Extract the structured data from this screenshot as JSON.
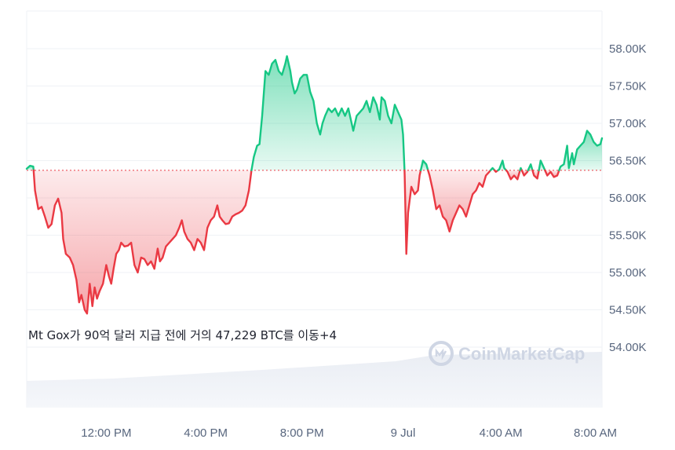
{
  "chart_data": {
    "type": "area",
    "title": "",
    "xlabel": "",
    "ylabel": "",
    "baseline": 56370,
    "ylim": [
      53300,
      58500
    ],
    "y_ticks": [
      54000,
      54500,
      55000,
      55500,
      56000,
      56500,
      57000,
      57500,
      58000
    ],
    "y_tick_labels": [
      "54.00K",
      "54.50K",
      "55.00K",
      "55.50K",
      "56.00K",
      "56.50K",
      "57.00K",
      "57.50K",
      "58.00K"
    ],
    "x_range_hours": [
      -1.4,
      15.95
    ],
    "x_ticks": [
      {
        "label": "12:00 PM",
        "hour": 1.0
      },
      {
        "label": "4:00 PM",
        "hour": 4.0
      },
      {
        "label": "8:00 PM",
        "hour": 6.9
      },
      {
        "label": "9 Jul",
        "hour": 9.95
      },
      {
        "label": "4:00 AM",
        "hour": 12.9
      },
      {
        "label": "8:00 AM",
        "hour": 15.75
      }
    ],
    "colors": {
      "up": "#16c784",
      "down": "#ea3943"
    },
    "series": [
      {
        "points": [
          [
            -1.4,
            56390
          ],
          [
            -1.3,
            56430
          ],
          [
            -1.2,
            56420
          ],
          [
            -1.15,
            56100
          ],
          [
            -1.05,
            55850
          ],
          [
            -0.95,
            55880
          ],
          [
            -0.85,
            55750
          ],
          [
            -0.75,
            55600
          ],
          [
            -0.65,
            55650
          ],
          [
            -0.55,
            55900
          ],
          [
            -0.45,
            55990
          ],
          [
            -0.35,
            55800
          ],
          [
            -0.3,
            55450
          ],
          [
            -0.22,
            55250
          ],
          [
            -0.1,
            55200
          ],
          [
            0.0,
            55100
          ],
          [
            0.1,
            54900
          ],
          [
            0.18,
            54600
          ],
          [
            0.25,
            54700
          ],
          [
            0.35,
            54500
          ],
          [
            0.42,
            54450
          ],
          [
            0.5,
            54850
          ],
          [
            0.58,
            54550
          ],
          [
            0.65,
            54800
          ],
          [
            0.72,
            54650
          ],
          [
            0.8,
            54750
          ],
          [
            0.9,
            54850
          ],
          [
            1.0,
            55100
          ],
          [
            1.08,
            54950
          ],
          [
            1.15,
            54850
          ],
          [
            1.22,
            55050
          ],
          [
            1.3,
            55250
          ],
          [
            1.38,
            55300
          ],
          [
            1.45,
            55400
          ],
          [
            1.55,
            55350
          ],
          [
            1.65,
            55360
          ],
          [
            1.75,
            55400
          ],
          [
            1.85,
            55100
          ],
          [
            1.95,
            55000
          ],
          [
            2.05,
            55200
          ],
          [
            2.15,
            55180
          ],
          [
            2.25,
            55100
          ],
          [
            2.35,
            55150
          ],
          [
            2.45,
            55050
          ],
          [
            2.55,
            55320
          ],
          [
            2.62,
            55150
          ],
          [
            2.7,
            55200
          ],
          [
            2.8,
            55350
          ],
          [
            2.9,
            55400
          ],
          [
            3.0,
            55450
          ],
          [
            3.1,
            55500
          ],
          [
            3.2,
            55600
          ],
          [
            3.28,
            55700
          ],
          [
            3.35,
            55550
          ],
          [
            3.45,
            55450
          ],
          [
            3.55,
            55400
          ],
          [
            3.65,
            55300
          ],
          [
            3.75,
            55450
          ],
          [
            3.85,
            55400
          ],
          [
            3.95,
            55300
          ],
          [
            4.05,
            55600
          ],
          [
            4.15,
            55700
          ],
          [
            4.25,
            55750
          ],
          [
            4.35,
            55900
          ],
          [
            4.42,
            55750
          ],
          [
            4.5,
            55700
          ],
          [
            4.6,
            55650
          ],
          [
            4.7,
            55660
          ],
          [
            4.8,
            55750
          ],
          [
            4.9,
            55780
          ],
          [
            5.0,
            55800
          ],
          [
            5.1,
            55830
          ],
          [
            5.2,
            55900
          ],
          [
            5.3,
            56100
          ],
          [
            5.38,
            56370
          ],
          [
            5.45,
            56550
          ],
          [
            5.55,
            56700
          ],
          [
            5.62,
            56720
          ],
          [
            5.7,
            57100
          ],
          [
            5.8,
            57700
          ],
          [
            5.9,
            57650
          ],
          [
            6.0,
            57800
          ],
          [
            6.1,
            57850
          ],
          [
            6.2,
            57700
          ],
          [
            6.3,
            57650
          ],
          [
            6.4,
            57800
          ],
          [
            6.45,
            57900
          ],
          [
            6.55,
            57700
          ],
          [
            6.6,
            57550
          ],
          [
            6.68,
            57400
          ],
          [
            6.75,
            57450
          ],
          [
            6.85,
            57600
          ],
          [
            6.95,
            57650
          ],
          [
            7.05,
            57650
          ],
          [
            7.15,
            57420
          ],
          [
            7.25,
            57300
          ],
          [
            7.35,
            57000
          ],
          [
            7.45,
            56850
          ],
          [
            7.52,
            57000
          ],
          [
            7.6,
            57100
          ],
          [
            7.7,
            57200
          ],
          [
            7.8,
            57150
          ],
          [
            7.9,
            57200
          ],
          [
            8.0,
            57100
          ],
          [
            8.1,
            57200
          ],
          [
            8.2,
            57100
          ],
          [
            8.3,
            57200
          ],
          [
            8.4,
            57000
          ],
          [
            8.45,
            56900
          ],
          [
            8.55,
            57100
          ],
          [
            8.65,
            57150
          ],
          [
            8.75,
            57200
          ],
          [
            8.85,
            57300
          ],
          [
            8.95,
            57150
          ],
          [
            9.05,
            57350
          ],
          [
            9.15,
            57250
          ],
          [
            9.25,
            57050
          ],
          [
            9.3,
            57350
          ],
          [
            9.4,
            57300
          ],
          [
            9.5,
            57100
          ],
          [
            9.6,
            57000
          ],
          [
            9.7,
            57250
          ],
          [
            9.8,
            57150
          ],
          [
            9.9,
            57050
          ],
          [
            9.95,
            56850
          ],
          [
            10.0,
            56300
          ],
          [
            10.05,
            55250
          ],
          [
            10.1,
            55800
          ],
          [
            10.2,
            56150
          ],
          [
            10.3,
            56050
          ],
          [
            10.4,
            56100
          ],
          [
            10.45,
            56300
          ],
          [
            10.55,
            56500
          ],
          [
            10.65,
            56450
          ],
          [
            10.75,
            56300
          ],
          [
            10.85,
            56100
          ],
          [
            10.95,
            55850
          ],
          [
            11.05,
            55900
          ],
          [
            11.15,
            55750
          ],
          [
            11.25,
            55700
          ],
          [
            11.35,
            55550
          ],
          [
            11.45,
            55700
          ],
          [
            11.55,
            55800
          ],
          [
            11.65,
            55900
          ],
          [
            11.75,
            55850
          ],
          [
            11.85,
            55750
          ],
          [
            11.95,
            55900
          ],
          [
            12.05,
            56050
          ],
          [
            12.15,
            56100
          ],
          [
            12.25,
            56200
          ],
          [
            12.35,
            56150
          ],
          [
            12.45,
            56300
          ],
          [
            12.55,
            56350
          ],
          [
            12.65,
            56400
          ],
          [
            12.75,
            56350
          ],
          [
            12.85,
            56380
          ],
          [
            12.95,
            56500
          ],
          [
            13.0,
            56400
          ],
          [
            13.1,
            56350
          ],
          [
            13.2,
            56250
          ],
          [
            13.3,
            56300
          ],
          [
            13.4,
            56250
          ],
          [
            13.5,
            56400
          ],
          [
            13.6,
            56300
          ],
          [
            13.7,
            56350
          ],
          [
            13.8,
            56450
          ],
          [
            13.9,
            56300
          ],
          [
            14.0,
            56260
          ],
          [
            14.1,
            56500
          ],
          [
            14.2,
            56400
          ],
          [
            14.3,
            56300
          ],
          [
            14.4,
            56350
          ],
          [
            14.5,
            56280
          ],
          [
            14.6,
            56300
          ],
          [
            14.7,
            56420
          ],
          [
            14.8,
            56450
          ],
          [
            14.9,
            56700
          ],
          [
            14.95,
            56400
          ],
          [
            15.05,
            56600
          ],
          [
            15.1,
            56450
          ],
          [
            15.2,
            56650
          ],
          [
            15.3,
            56700
          ],
          [
            15.4,
            56750
          ],
          [
            15.5,
            56900
          ],
          [
            15.6,
            56850
          ],
          [
            15.7,
            56750
          ],
          [
            15.8,
            56700
          ],
          [
            15.9,
            56720
          ],
          [
            15.95,
            56800
          ]
        ]
      }
    ],
    "annotation": "Mt Gox가 90억 달러 지급 전에 거의 47,229 BTC를 이동+4",
    "watermark": "CoinMarketCap",
    "volume_band": true
  }
}
